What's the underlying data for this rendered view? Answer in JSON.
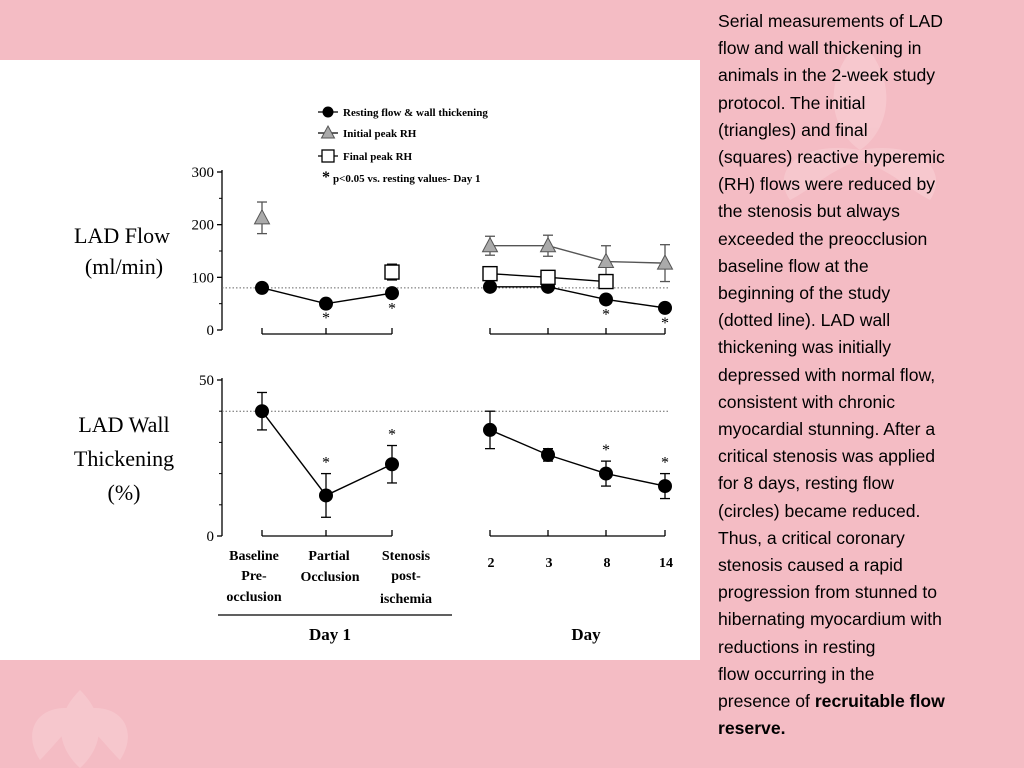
{
  "slide": {
    "background": "#f4bcc4",
    "caption_lines": [
      "Serial measurements of LAD",
      "flow and wall thickening in",
      "animals in the 2-week study",
      "protocol. The initial",
      "(triangles) and final",
      "(squares) reactive hyperemic",
      "(RH) flows were reduced by",
      "the stenosis but always",
      "exceeded the preocclusion",
      "baseline flow at the",
      "beginning of the study",
      "(dotted line). LAD wall",
      "thickening was initially",
      "depressed with normal flow,",
      "consistent with chronic",
      "myocardial stunning. After a",
      "critical stenosis was applied",
      "for 8 days, resting flow",
      "(circles) became reduced.",
      "Thus, a critical coronary",
      "stenosis caused a rapid",
      "progression from stunned to",
      "hibernating myocardium with",
      "reductions in resting",
      "flow occurring in the"
    ],
    "caption_last_plain": "presence of ",
    "caption_last_bold": "recruitable flow",
    "caption_final_bold": "reserve."
  },
  "figure": {
    "legend": {
      "resting": "Resting flow & wall thickening",
      "initial": "Initial peak RH",
      "final": "Final peak RH",
      "sig_star": "*",
      "sig_text": "p<0.05 vs. resting values- Day 1"
    },
    "x_labels_day1": [
      [
        "Baseline",
        "Pre-",
        "occlusion"
      ],
      [
        "Partial",
        "Occlusion"
      ],
      [
        "Stenosis",
        "post-",
        "ischemia"
      ]
    ],
    "x_labels_days": [
      "2",
      "3",
      "8",
      "14"
    ],
    "group_day1": "Day 1",
    "group_days": "Day"
  },
  "chart_data": [
    {
      "type": "line",
      "ylabel": [
        "LAD Flow",
        "(ml/min)"
      ],
      "yticks": [
        "300",
        "200",
        "100",
        "0"
      ],
      "ylim": [
        0,
        300
      ],
      "reference_line": {
        "value": 80,
        "style": "dotted"
      },
      "categories_day1": [
        "Baseline Pre-occlusion",
        "Partial Occlusion",
        "Stenosis post-ischemia"
      ],
      "categories_days": [
        "2",
        "3",
        "8",
        "14"
      ],
      "series": [
        {
          "name": "Resting flow & wall thickening",
          "marker": "circle",
          "day1": [
            80,
            50,
            70
          ],
          "day1_err": [
            6,
            6,
            8
          ],
          "days": [
            82,
            82,
            58,
            42
          ],
          "days_err": [
            6,
            6,
            8,
            8
          ],
          "significant_day1": [
            false,
            true,
            true
          ],
          "significant_days": [
            false,
            false,
            true,
            true
          ]
        },
        {
          "name": "Initial peak RH",
          "marker": "triangle",
          "day1": [
            213,
            null,
            null
          ],
          "day1_err": [
            30,
            null,
            null
          ],
          "days": [
            160,
            160,
            130,
            127
          ],
          "days_err": [
            18,
            20,
            30,
            35
          ]
        },
        {
          "name": "Final peak RH",
          "marker": "square",
          "day1": [
            null,
            null,
            110
          ],
          "day1_err": [
            null,
            null,
            15
          ],
          "days": [
            107,
            100,
            92,
            null
          ],
          "days_err": [
            12,
            12,
            12,
            null
          ]
        }
      ]
    },
    {
      "type": "line",
      "ylabel": [
        "LAD Wall",
        "Thickening",
        "(%)"
      ],
      "yticks": [
        "50",
        "0"
      ],
      "ylim": [
        0,
        50
      ],
      "reference_line": {
        "value": 40,
        "style": "dotted"
      },
      "categories_day1": [
        "Baseline Pre-occlusion",
        "Partial Occlusion",
        "Stenosis post-ischemia"
      ],
      "categories_days": [
        "2",
        "3",
        "8",
        "14"
      ],
      "series": [
        {
          "name": "Resting flow & wall thickening",
          "marker": "circle",
          "day1": [
            40,
            13,
            23
          ],
          "day1_err": [
            6,
            7,
            6
          ],
          "days": [
            34,
            26,
            20,
            16
          ],
          "days_err": [
            6,
            2,
            4,
            4
          ],
          "significant_day1": [
            false,
            true,
            true
          ],
          "significant_days": [
            false,
            false,
            true,
            true
          ]
        }
      ]
    }
  ]
}
